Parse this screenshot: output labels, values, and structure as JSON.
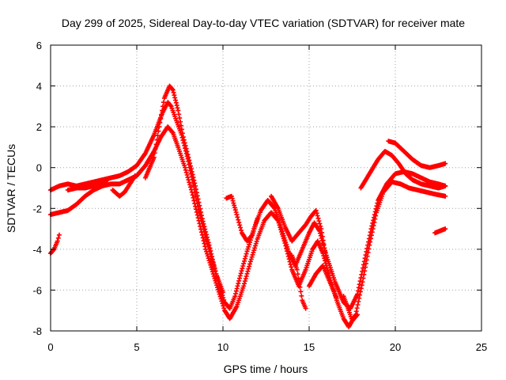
{
  "chart_data": {
    "type": "scatter",
    "title": "Day 299 of 2025, Sidereal Day-to-day VTEC variation (SDTVAR) for receiver mate",
    "xlabel": "GPS time / hours",
    "ylabel": "SDTVAR / TECUs",
    "xlim": [
      0,
      25
    ],
    "ylim": [
      -8,
      6
    ],
    "xticks": [
      0,
      5,
      10,
      15,
      20,
      25
    ],
    "yticks": [
      -8,
      -6,
      -4,
      -2,
      0,
      2,
      4,
      6
    ],
    "grid": true,
    "marker": "plus",
    "color": "#ff0000",
    "tracks": [
      [
        [
          0.0,
          -1.1
        ],
        [
          0.5,
          -0.9
        ],
        [
          1.0,
          -0.8
        ],
        [
          1.5,
          -0.9
        ],
        [
          2.0,
          -0.8
        ],
        [
          2.5,
          -0.7
        ],
        [
          3.0,
          -0.6
        ],
        [
          3.5,
          -0.5
        ],
        [
          4.0,
          -0.4
        ],
        [
          4.5,
          -0.2
        ],
        [
          5.0,
          0.1
        ],
        [
          5.5,
          0.7
        ],
        [
          6.0,
          1.6
        ],
        [
          6.5,
          2.7
        ],
        [
          6.8,
          3.2
        ],
        [
          7.0,
          3.0
        ],
        [
          7.3,
          2.3
        ],
        [
          7.6,
          1.6
        ],
        [
          8.0,
          0.3
        ],
        [
          8.3,
          -0.9
        ],
        [
          8.6,
          -2.1
        ],
        [
          9.0,
          -3.4
        ],
        [
          9.4,
          -4.6
        ],
        [
          9.8,
          -5.8
        ],
        [
          10.1,
          -6.6
        ],
        [
          10.4,
          -6.9
        ],
        [
          10.7,
          -6.3
        ],
        [
          11.0,
          -5.3
        ],
        [
          11.4,
          -4.1
        ],
        [
          11.8,
          -3.0
        ],
        [
          12.2,
          -2.1
        ],
        [
          12.6,
          -1.6
        ],
        [
          13.0,
          -2.0
        ],
        [
          13.4,
          -3.0
        ],
        [
          13.8,
          -4.1
        ],
        [
          14.2,
          -4.8
        ],
        [
          14.6,
          -4.0
        ],
        [
          15.0,
          -3.2
        ],
        [
          15.3,
          -2.7
        ],
        [
          15.6,
          -3.1
        ],
        [
          16.0,
          -4.3
        ],
        [
          16.5,
          -5.6
        ],
        [
          17.0,
          -6.6
        ],
        [
          17.4,
          -6.9
        ],
        [
          17.8,
          -6.2
        ],
        [
          18.2,
          -4.6
        ],
        [
          18.6,
          -3.0
        ],
        [
          19.0,
          -1.6
        ],
        [
          19.5,
          -0.8
        ],
        [
          20.0,
          -0.3
        ],
        [
          20.5,
          -0.2
        ],
        [
          21.0,
          -0.3
        ],
        [
          21.5,
          -0.5
        ],
        [
          22.0,
          -0.7
        ],
        [
          22.5,
          -0.8
        ],
        [
          22.9,
          -0.9
        ]
      ],
      [
        [
          0.0,
          -2.3
        ],
        [
          0.5,
          -2.2
        ],
        [
          1.0,
          -2.1
        ],
        [
          1.5,
          -1.8
        ],
        [
          2.0,
          -1.4
        ],
        [
          2.5,
          -1.1
        ],
        [
          3.0,
          -0.9
        ],
        [
          3.5,
          -0.8
        ],
        [
          4.0,
          -0.8
        ],
        [
          4.5,
          -0.6
        ],
        [
          5.0,
          -0.4
        ],
        [
          5.5,
          0.1
        ],
        [
          6.0,
          0.8
        ],
        [
          6.4,
          1.5
        ],
        [
          6.8,
          2.0
        ],
        [
          7.1,
          1.7
        ],
        [
          7.4,
          1.0
        ],
        [
          7.8,
          0.0
        ],
        [
          8.2,
          -1.2
        ],
        [
          8.6,
          -2.6
        ],
        [
          9.0,
          -4.0
        ],
        [
          9.4,
          -5.1
        ],
        [
          9.8,
          -6.2
        ],
        [
          10.1,
          -7.0
        ],
        [
          10.4,
          -7.4
        ],
        [
          10.8,
          -6.8
        ],
        [
          11.2,
          -5.8
        ],
        [
          11.6,
          -4.6
        ],
        [
          12.0,
          -3.5
        ],
        [
          12.4,
          -2.6
        ],
        [
          12.8,
          -2.2
        ],
        [
          13.2,
          -2.6
        ],
        [
          13.6,
          -3.7
        ],
        [
          14.0,
          -5.0
        ],
        [
          14.4,
          -5.8
        ],
        [
          14.8,
          -5.0
        ],
        [
          15.2,
          -4.0
        ],
        [
          15.5,
          -3.6
        ],
        [
          15.8,
          -4.2
        ],
        [
          16.2,
          -5.4
        ],
        [
          16.6,
          -6.5
        ],
        [
          17.0,
          -7.4
        ],
        [
          17.3,
          -7.8
        ],
        [
          17.7,
          -7.2
        ],
        [
          18.1,
          -5.6
        ],
        [
          18.5,
          -3.8
        ],
        [
          18.9,
          -2.2
        ],
        [
          19.3,
          -1.2
        ],
        [
          19.8,
          -0.7
        ],
        [
          20.3,
          -0.8
        ],
        [
          20.8,
          -1.0
        ],
        [
          21.3,
          -1.1
        ],
        [
          21.8,
          -1.2
        ],
        [
          22.3,
          -1.3
        ],
        [
          22.9,
          -1.4
        ]
      ],
      [
        [
          5.5,
          -0.5
        ],
        [
          6.0,
          0.5
        ],
        [
          6.3,
          2.0
        ],
        [
          6.6,
          3.4
        ],
        [
          6.9,
          4.0
        ],
        [
          7.1,
          3.8
        ],
        [
          7.4,
          2.8
        ],
        [
          7.7,
          1.5
        ],
        [
          8.0,
          0.5
        ],
        [
          8.4,
          -0.9
        ],
        [
          8.8,
          -2.5
        ],
        [
          9.2,
          -3.8
        ],
        [
          9.6,
          -5.2
        ],
        [
          10.0,
          -6.1
        ]
      ],
      [
        [
          10.2,
          -1.5
        ],
        [
          10.5,
          -1.4
        ],
        [
          10.8,
          -2.3
        ],
        [
          11.1,
          -3.2
        ],
        [
          11.4,
          -3.6
        ],
        [
          11.7,
          -3.3
        ],
        [
          12.0,
          -2.5
        ]
      ],
      [
        [
          12.8,
          -1.4
        ],
        [
          13.2,
          -2.0
        ],
        [
          13.6,
          -2.9
        ],
        [
          14.0,
          -3.6
        ],
        [
          14.4,
          -3.2
        ],
        [
          14.8,
          -2.8
        ],
        [
          15.1,
          -2.4
        ],
        [
          15.4,
          -2.1
        ],
        [
          15.7,
          -3.0
        ],
        [
          16.0,
          -4.5
        ]
      ],
      [
        [
          14.0,
          -4.3
        ],
        [
          14.3,
          -5.0
        ],
        [
          14.6,
          -6.5
        ],
        [
          14.8,
          -6.9
        ]
      ],
      [
        [
          15.0,
          -5.8
        ],
        [
          15.4,
          -5.2
        ],
        [
          15.8,
          -4.8
        ],
        [
          16.2,
          -5.6
        ],
        [
          16.6,
          -6.4
        ]
      ],
      [
        [
          17.0,
          -6.3
        ],
        [
          17.3,
          -7.0
        ],
        [
          17.5,
          -7.5
        ],
        [
          17.8,
          -7.2
        ]
      ],
      [
        [
          18.0,
          -1.0
        ],
        [
          18.5,
          -0.3
        ],
        [
          19.0,
          0.4
        ],
        [
          19.4,
          0.8
        ],
        [
          19.8,
          0.6
        ],
        [
          20.2,
          0.2
        ],
        [
          20.6,
          -0.3
        ],
        [
          21.0,
          -0.6
        ],
        [
          21.5,
          -0.8
        ],
        [
          22.0,
          -0.9
        ],
        [
          22.5,
          -1.0
        ],
        [
          22.9,
          -0.9
        ]
      ],
      [
        [
          19.6,
          1.3
        ],
        [
          20.0,
          1.2
        ],
        [
          20.5,
          0.8
        ],
        [
          21.0,
          0.4
        ],
        [
          21.5,
          0.1
        ],
        [
          22.0,
          0.0
        ],
        [
          22.5,
          0.1
        ],
        [
          22.9,
          0.2
        ]
      ],
      [
        [
          22.3,
          -3.2
        ],
        [
          22.6,
          -3.1
        ],
        [
          22.9,
          -3.0
        ]
      ],
      [
        [
          0.0,
          -4.2
        ],
        [
          0.2,
          -4.0
        ],
        [
          0.4,
          -3.6
        ],
        [
          0.5,
          -3.3
        ]
      ],
      [
        [
          1.0,
          -1.1
        ],
        [
          1.5,
          -1.0
        ],
        [
          2.0,
          -1.0
        ],
        [
          2.5,
          -0.9
        ],
        [
          3.0,
          -0.8
        ],
        [
          3.3,
          -0.6
        ]
      ],
      [
        [
          3.6,
          -1.1
        ],
        [
          4.0,
          -1.4
        ],
        [
          4.3,
          -1.2
        ],
        [
          4.6,
          -0.8
        ],
        [
          4.9,
          -0.4
        ]
      ]
    ]
  }
}
